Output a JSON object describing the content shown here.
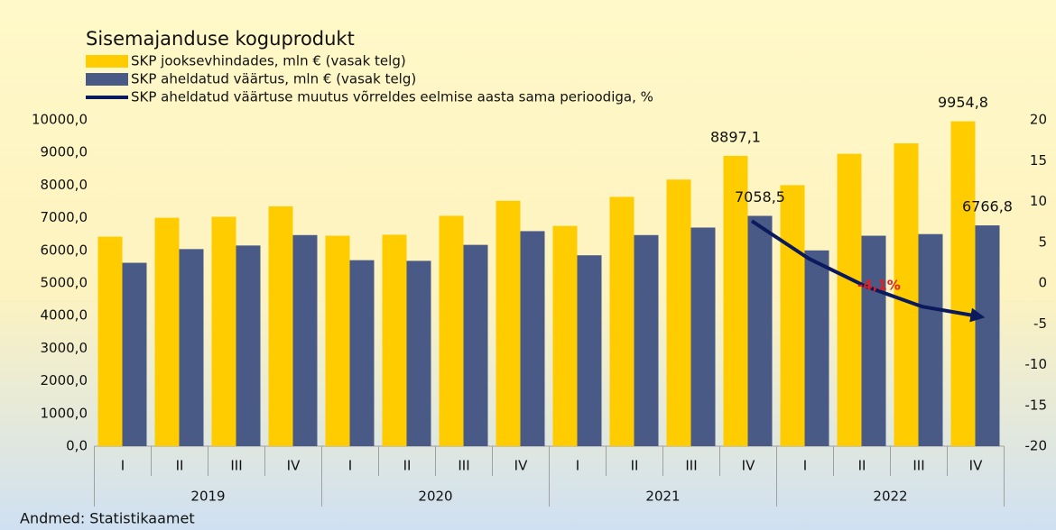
{
  "chart_data": {
    "type": "bar",
    "title": "Sisemajanduse koguprodukt",
    "categories": [
      "I",
      "II",
      "III",
      "IV",
      "I",
      "II",
      "III",
      "IV",
      "I",
      "II",
      "III",
      "IV",
      "I",
      "II",
      "III",
      "IV"
    ],
    "group_labels": [
      "2019",
      "2020",
      "2021",
      "2022"
    ],
    "series": [
      {
        "name": "SKP jooksevhindades, mln € (vasak telg)",
        "type": "bar",
        "color": "#ffcc00",
        "values": [
          6420,
          7000,
          7030,
          7350,
          6450,
          6480,
          7060,
          7520,
          6750,
          7640,
          8170,
          8897.1,
          8000,
          8960,
          9280,
          9954.8
        ],
        "value_labels": [
          null,
          null,
          null,
          null,
          null,
          null,
          null,
          null,
          null,
          null,
          null,
          "8897,1",
          null,
          null,
          null,
          "9954,8"
        ]
      },
      {
        "name": "SKP aheldatud väärtus, mln € (vasak telg)",
        "type": "bar",
        "color": "#4a5a86",
        "values": [
          5620,
          6040,
          6150,
          6470,
          5700,
          5680,
          6170,
          6590,
          5850,
          6470,
          6700,
          7058.5,
          6000,
          6450,
          6500,
          6766.8
        ],
        "value_labels": [
          null,
          null,
          null,
          null,
          null,
          null,
          null,
          null,
          null,
          null,
          null,
          "7058,5",
          null,
          null,
          null,
          "6766,8"
        ]
      },
      {
        "name": "SKP aheldatud väärtuse muutus võrreldes eelmise aasta sama perioodiga, %",
        "type": "line",
        "axis": "y2",
        "color": "#0a1a5c",
        "values": [
          null,
          null,
          null,
          null,
          null,
          null,
          null,
          null,
          null,
          null,
          null,
          7.6,
          3.0,
          -0.4,
          -2.9,
          -4.1
        ],
        "value_labels": [
          null,
          null,
          null,
          null,
          null,
          null,
          null,
          null,
          null,
          null,
          null,
          null,
          null,
          null,
          null,
          "-4,1%"
        ]
      }
    ],
    "ylim": [
      0,
      10000
    ],
    "yticks": [
      {
        "value": 0,
        "label": "0,0"
      },
      {
        "value": 1000,
        "label": "1000,0"
      },
      {
        "value": 2000,
        "label": "2000,0"
      },
      {
        "value": 3000,
        "label": "3000,0"
      },
      {
        "value": 4000,
        "label": "4000,0"
      },
      {
        "value": 5000,
        "label": "5000,0"
      },
      {
        "value": 6000,
        "label": "6000,0"
      },
      {
        "value": 7000,
        "label": "7000,0"
      },
      {
        "value": 8000,
        "label": "8000,0"
      },
      {
        "value": 9000,
        "label": "9000,0"
      },
      {
        "value": 10000,
        "label": "10000,0"
      }
    ],
    "y2lim": [
      -20,
      20
    ],
    "y2ticks": [
      -20,
      -15,
      -10,
      -5,
      0,
      5,
      10,
      15,
      20
    ],
    "source": "Andmed: Statistikaamet"
  }
}
